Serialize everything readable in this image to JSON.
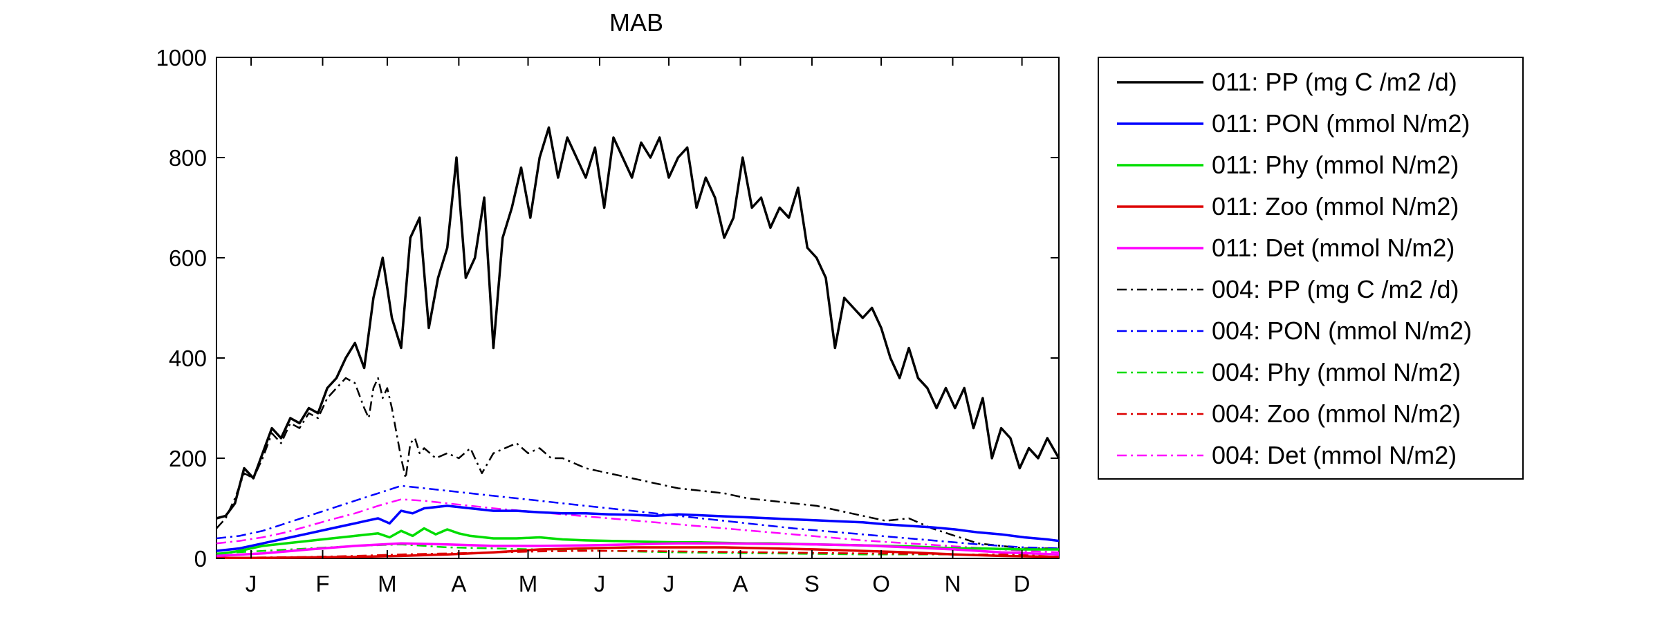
{
  "chart_data": {
    "type": "line",
    "title": "MAB",
    "xlabel": "",
    "ylabel": "",
    "xlim": [
      0,
      365
    ],
    "ylim": [
      0,
      1000
    ],
    "yticks": [
      0,
      200,
      400,
      600,
      800,
      1000
    ],
    "xticks": [
      {
        "label": "J",
        "day": 15
      },
      {
        "label": "F",
        "day": 46
      },
      {
        "label": "M",
        "day": 74
      },
      {
        "label": "A",
        "day": 105
      },
      {
        "label": "M",
        "day": 135
      },
      {
        "label": "J",
        "day": 166
      },
      {
        "label": "J",
        "day": 196
      },
      {
        "label": "A",
        "day": 227
      },
      {
        "label": "S",
        "day": 258
      },
      {
        "label": "O",
        "day": 288
      },
      {
        "label": "N",
        "day": 319
      },
      {
        "label": "D",
        "day": 349
      }
    ],
    "grid": false,
    "legend_position": "outside-right",
    "series": [
      {
        "name": "011: PP (mg C /m2 /d)",
        "color": "#000000",
        "dash": "solid",
        "x": [
          0,
          4,
          8,
          12,
          16,
          20,
          24,
          28,
          32,
          36,
          40,
          44,
          48,
          52,
          56,
          60,
          64,
          68,
          72,
          76,
          80,
          84,
          88,
          92,
          96,
          100,
          104,
          108,
          112,
          116,
          120,
          124,
          128,
          132,
          136,
          140,
          144,
          148,
          152,
          156,
          160,
          164,
          168,
          172,
          176,
          180,
          184,
          188,
          192,
          196,
          200,
          204,
          208,
          212,
          216,
          220,
          224,
          228,
          232,
          236,
          240,
          244,
          248,
          252,
          256,
          260,
          264,
          268,
          272,
          276,
          280,
          284,
          288,
          292,
          296,
          300,
          304,
          308,
          312,
          316,
          320,
          324,
          328,
          332,
          336,
          340,
          344,
          348,
          352,
          356,
          360,
          365
        ],
        "y": [
          80,
          85,
          110,
          180,
          160,
          210,
          260,
          240,
          280,
          270,
          300,
          290,
          340,
          360,
          400,
          430,
          380,
          520,
          600,
          480,
          420,
          640,
          680,
          460,
          560,
          620,
          800,
          560,
          600,
          720,
          420,
          640,
          700,
          780,
          680,
          800,
          860,
          760,
          840,
          800,
          760,
          820,
          700,
          840,
          800,
          760,
          830,
          800,
          840,
          760,
          800,
          820,
          700,
          760,
          720,
          640,
          680,
          800,
          700,
          720,
          660,
          700,
          680,
          740,
          620,
          600,
          560,
          420,
          520,
          500,
          480,
          500,
          460,
          400,
          360,
          420,
          360,
          340,
          300,
          340,
          300,
          340,
          260,
          320,
          200,
          260,
          240,
          180,
          220,
          200,
          240,
          200
        ]
      },
      {
        "name": "011: PON (mmol N/m2)",
        "color": "#0000ff",
        "dash": "solid",
        "x": [
          0,
          10,
          20,
          30,
          40,
          50,
          60,
          65,
          70,
          75,
          80,
          85,
          90,
          100,
          110,
          120,
          130,
          140,
          150,
          160,
          170,
          180,
          190,
          200,
          210,
          220,
          230,
          240,
          250,
          260,
          270,
          280,
          290,
          300,
          310,
          320,
          330,
          340,
          350,
          360,
          365
        ],
        "y": [
          15,
          20,
          30,
          40,
          50,
          60,
          70,
          75,
          80,
          70,
          95,
          90,
          100,
          105,
          100,
          95,
          95,
          92,
          90,
          90,
          88,
          87,
          85,
          88,
          86,
          84,
          82,
          80,
          78,
          76,
          74,
          72,
          68,
          65,
          62,
          58,
          52,
          48,
          42,
          38,
          35
        ]
      },
      {
        "name": "011: Phy (mmol N/m2)",
        "color": "#00dd00",
        "dash": "solid",
        "x": [
          0,
          10,
          20,
          30,
          40,
          50,
          60,
          70,
          75,
          80,
          85,
          90,
          95,
          100,
          105,
          110,
          120,
          130,
          140,
          150,
          160,
          170,
          180,
          190,
          200,
          210,
          220,
          230,
          240,
          250,
          260,
          270,
          280,
          290,
          300,
          310,
          320,
          330,
          340,
          350,
          360,
          365
        ],
        "y": [
          8,
          15,
          25,
          30,
          35,
          40,
          45,
          50,
          42,
          55,
          45,
          60,
          48,
          58,
          50,
          45,
          40,
          40,
          42,
          38,
          36,
          35,
          34,
          33,
          32,
          32,
          31,
          30,
          30,
          29,
          28,
          27,
          26,
          25,
          24,
          22,
          20,
          20,
          19,
          18,
          18,
          18
        ]
      },
      {
        "name": "011: Zoo (mmol N/m2)",
        "color": "#dd0000",
        "dash": "solid",
        "x": [
          0,
          20,
          40,
          60,
          80,
          100,
          120,
          140,
          160,
          180,
          200,
          220,
          240,
          260,
          280,
          300,
          320,
          340,
          365
        ],
        "y": [
          1,
          1,
          2,
          3,
          5,
          8,
          12,
          18,
          20,
          22,
          22,
          22,
          20,
          18,
          15,
          12,
          8,
          5,
          3
        ]
      },
      {
        "name": "011: Det (mmol N/m2)",
        "color": "#ff00ff",
        "dash": "solid",
        "x": [
          0,
          20,
          40,
          60,
          80,
          100,
          120,
          140,
          160,
          180,
          200,
          220,
          240,
          260,
          280,
          300,
          320,
          340,
          365
        ],
        "y": [
          5,
          10,
          18,
          25,
          30,
          28,
          25,
          25,
          26,
          28,
          30,
          30,
          29,
          28,
          26,
          22,
          18,
          12,
          8
        ]
      },
      {
        "name": "004: PP (mg C /m2 /d)",
        "color": "#000000",
        "dash": "dashdot",
        "x": [
          0,
          4,
          8,
          12,
          16,
          20,
          24,
          28,
          32,
          36,
          40,
          44,
          48,
          52,
          56,
          60,
          64,
          66,
          68,
          70,
          72,
          74,
          76,
          78,
          80,
          82,
          84,
          86,
          88,
          90,
          95,
          100,
          105,
          110,
          115,
          120,
          125,
          130,
          135,
          140,
          145,
          150,
          160,
          170,
          180,
          190,
          200,
          210,
          220,
          230,
          240,
          250,
          260,
          270,
          280,
          290,
          300,
          310,
          320,
          330,
          340,
          350,
          365
        ],
        "y": [
          60,
          80,
          120,
          170,
          160,
          200,
          250,
          230,
          270,
          260,
          290,
          280,
          320,
          340,
          360,
          350,
          300,
          280,
          340,
          360,
          320,
          340,
          300,
          250,
          200,
          160,
          230,
          240,
          210,
          220,
          200,
          210,
          200,
          220,
          170,
          210,
          220,
          230,
          210,
          220,
          200,
          200,
          180,
          170,
          160,
          150,
          140,
          135,
          130,
          120,
          115,
          110,
          105,
          95,
          85,
          75,
          80,
          60,
          45,
          30,
          25,
          20,
          20
        ]
      },
      {
        "name": "004: PON (mmol N/m2)",
        "color": "#0000ff",
        "dash": "dashdot",
        "x": [
          0,
          10,
          20,
          30,
          40,
          50,
          60,
          70,
          80,
          90,
          100,
          110,
          120,
          130,
          140,
          150,
          160,
          170,
          180,
          190,
          200,
          210,
          220,
          230,
          240,
          250,
          260,
          270,
          280,
          290,
          300,
          310,
          320,
          330,
          340,
          350,
          365
        ],
        "y": [
          40,
          45,
          55,
          70,
          85,
          100,
          115,
          130,
          145,
          140,
          135,
          130,
          125,
          120,
          115,
          110,
          105,
          100,
          95,
          90,
          85,
          80,
          75,
          70,
          65,
          60,
          56,
          52,
          48,
          44,
          40,
          36,
          32,
          28,
          25,
          22,
          20
        ]
      },
      {
        "name": "004: Phy (mmol N/m2)",
        "color": "#00dd00",
        "dash": "dashdot",
        "x": [
          0,
          20,
          40,
          60,
          80,
          100,
          120,
          140,
          160,
          180,
          200,
          220,
          240,
          260,
          280,
          300,
          320,
          340,
          365
        ],
        "y": [
          10,
          15,
          20,
          25,
          28,
          22,
          20,
          18,
          16,
          14,
          12,
          11,
          10,
          9,
          8,
          8,
          8,
          8,
          8
        ]
      },
      {
        "name": "004: Zoo (mmol N/m2)",
        "color": "#dd0000",
        "dash": "dashdot",
        "x": [
          0,
          20,
          40,
          60,
          80,
          100,
          120,
          140,
          160,
          180,
          200,
          220,
          240,
          260,
          280,
          300,
          320,
          340,
          365
        ],
        "y": [
          1,
          2,
          3,
          5,
          8,
          10,
          12,
          14,
          15,
          15,
          14,
          13,
          12,
          11,
          10,
          9,
          8,
          8,
          8
        ]
      },
      {
        "name": "004: Det (mmol N/m2)",
        "color": "#ff00ff",
        "dash": "dashdot",
        "x": [
          0,
          10,
          20,
          30,
          40,
          50,
          60,
          70,
          80,
          90,
          100,
          110,
          120,
          130,
          140,
          150,
          160,
          170,
          180,
          190,
          200,
          210,
          220,
          230,
          240,
          250,
          260,
          270,
          280,
          290,
          300,
          310,
          320,
          330,
          340,
          350,
          365
        ],
        "y": [
          30,
          35,
          42,
          52,
          65,
          78,
          90,
          105,
          118,
          115,
          110,
          105,
          100,
          96,
          92,
          88,
          84,
          80,
          76,
          72,
          68,
          64,
          60,
          56,
          52,
          48,
          44,
          40,
          36,
          33,
          30,
          27,
          24,
          21,
          18,
          15,
          12
        ]
      }
    ]
  }
}
